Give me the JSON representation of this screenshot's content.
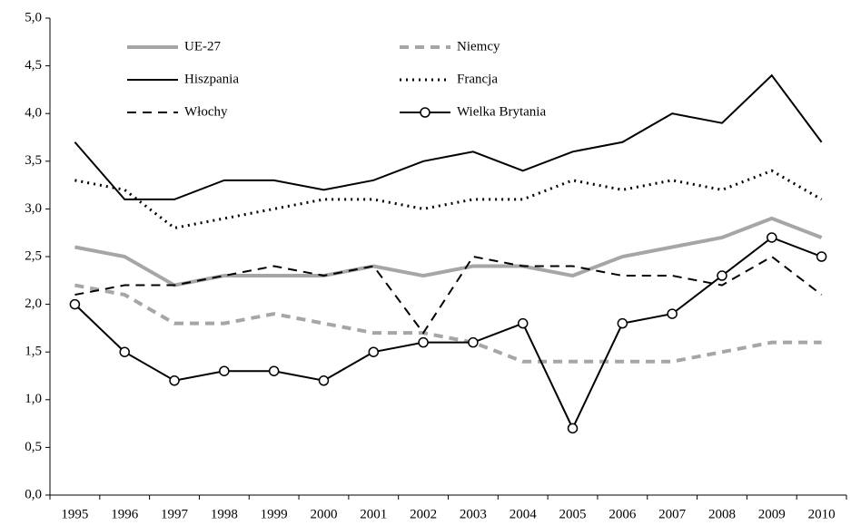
{
  "chart_data": {
    "type": "line",
    "categories": [
      "1995",
      "1996",
      "1997",
      "1998",
      "1999",
      "2000",
      "2001",
      "2002",
      "2003",
      "2004",
      "2005",
      "2006",
      "2007",
      "2008",
      "2009",
      "2010"
    ],
    "series": [
      {
        "name": "UE-27",
        "color": "#a6a6a6",
        "dash": "solid",
        "width": 4,
        "values": [
          2.6,
          2.5,
          2.2,
          2.3,
          2.3,
          2.3,
          2.4,
          2.3,
          2.4,
          2.4,
          2.3,
          2.5,
          2.6,
          2.7,
          2.9,
          2.7
        ]
      },
      {
        "name": "Niemcy",
        "color": "#a6a6a6",
        "dash": "dashed",
        "width": 4,
        "values": [
          2.2,
          2.1,
          1.8,
          1.8,
          1.9,
          1.8,
          1.7,
          1.7,
          1.6,
          1.4,
          1.4,
          1.4,
          1.4,
          1.5,
          1.6,
          1.6
        ]
      },
      {
        "name": "Hiszpania",
        "color": "#000000",
        "dash": "solid",
        "width": 2,
        "values": [
          3.7,
          3.1,
          3.1,
          3.3,
          3.3,
          3.2,
          3.3,
          3.5,
          3.6,
          3.4,
          3.6,
          3.7,
          4.0,
          3.9,
          4.4,
          3.7
        ]
      },
      {
        "name": "Francja",
        "color": "#000000",
        "dash": "dotted",
        "width": 3,
        "values": [
          3.3,
          3.2,
          2.8,
          2.9,
          3.0,
          3.1,
          3.1,
          3.0,
          3.1,
          3.1,
          3.3,
          3.2,
          3.3,
          3.2,
          3.4,
          3.1
        ]
      },
      {
        "name": "Włochy",
        "color": "#000000",
        "dash": "dashed",
        "width": 2,
        "values": [
          2.1,
          2.2,
          2.2,
          2.3,
          2.4,
          2.3,
          2.4,
          1.7,
          2.5,
          2.4,
          2.4,
          2.3,
          2.3,
          2.2,
          2.5,
          2.1
        ]
      },
      {
        "name": "Wielka Brytania",
        "color": "#000000",
        "dash": "solid",
        "width": 2,
        "marker": "circle",
        "values": [
          2.0,
          1.5,
          1.2,
          1.3,
          1.3,
          1.2,
          1.5,
          1.6,
          1.6,
          1.8,
          0.7,
          1.8,
          1.9,
          2.3,
          2.7,
          2.5
        ]
      }
    ],
    "ylim": [
      0,
      5
    ],
    "yticks": [
      {
        "value": 0,
        "label": "0,0"
      },
      {
        "value": 0.5,
        "label": "0,5"
      },
      {
        "value": 1,
        "label": "1,0"
      },
      {
        "value": 1.5,
        "label": "1,5"
      },
      {
        "value": 2,
        "label": "2,0"
      },
      {
        "value": 2.5,
        "label": "2,5"
      },
      {
        "value": 3,
        "label": "3,0"
      },
      {
        "value": 3.5,
        "label": "3,5"
      },
      {
        "value": 4,
        "label": "4,0"
      },
      {
        "value": 4.5,
        "label": "4,5"
      },
      {
        "value": 5,
        "label": "5,0"
      }
    ],
    "grid": false,
    "legend": "top-left"
  }
}
